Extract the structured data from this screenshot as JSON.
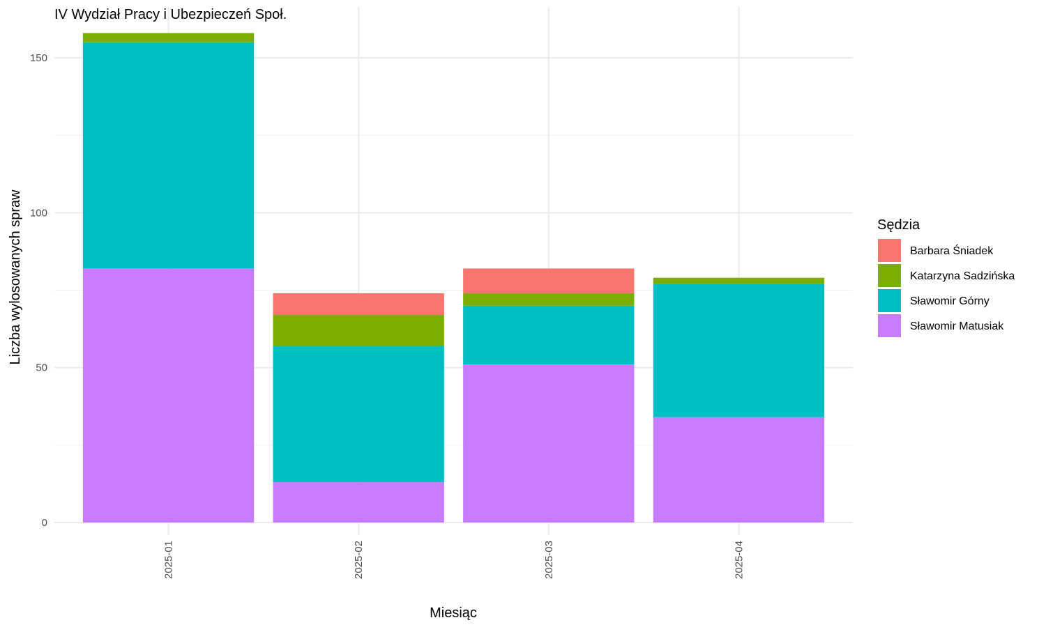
{
  "chart_data": {
    "type": "bar",
    "stacked": true,
    "title": "IV Wydział Pracy i Ubezpieczeń Społ.",
    "xlabel": "Miesiąc",
    "ylabel": "Liczba wylosowanych spraw",
    "categories": [
      "2025-01",
      "2025-02",
      "2025-03",
      "2025-04"
    ],
    "ylim": [
      0,
      160
    ],
    "yticks": [
      0,
      50,
      100,
      150
    ],
    "grid": true,
    "legend": {
      "title": "Sędzia",
      "position": "right"
    },
    "series": [
      {
        "name": "Sławomir Matusiak",
        "color": "#C77CFF",
        "values": [
          82,
          13,
          51,
          34
        ]
      },
      {
        "name": "Sławomir Górny",
        "color": "#00BFC4",
        "values": [
          73,
          44,
          19,
          43
        ]
      },
      {
        "name": "Katarzyna Sadzińska",
        "color": "#7CAE00",
        "values": [
          3,
          10,
          4,
          2
        ]
      },
      {
        "name": "Barbara Śniadek",
        "color": "#F8766D",
        "values": [
          0,
          7,
          8,
          0
        ]
      }
    ],
    "legend_order": [
      "Barbara Śniadek",
      "Katarzyna Sadzińska",
      "Sławomir Górny",
      "Sławomir Matusiak"
    ]
  }
}
